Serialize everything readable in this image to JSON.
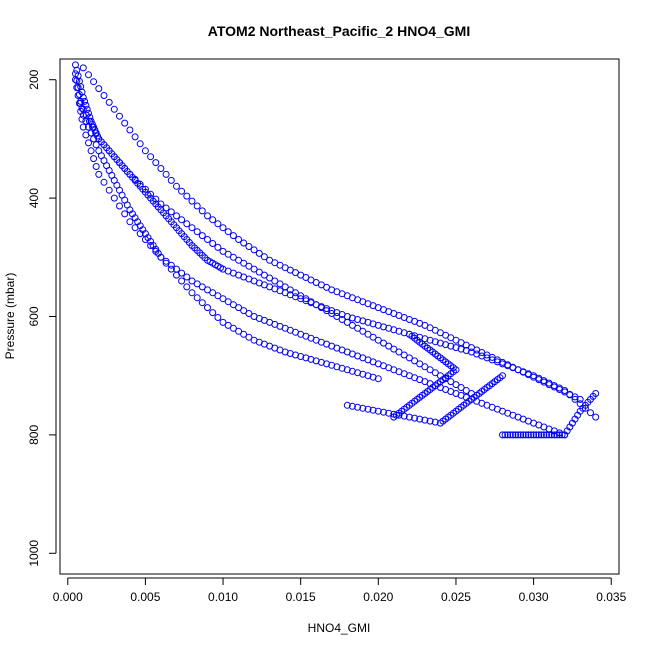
{
  "chart_data": {
    "type": "scatter",
    "title": "ATOM2 Northeast_Pacific_2 HNO4_GMI",
    "xlabel": "HNO4_GMI",
    "ylabel": "Pressure (mbar)",
    "xlim": [
      -0.0005,
      0.0355
    ],
    "ylim": [
      1035,
      165
    ],
    "y_reversed": true,
    "grid": false,
    "legend": "none",
    "marker": "open-circle",
    "color": "#0000ff",
    "x_ticks": [
      "0.000",
      "0.005",
      "0.010",
      "0.015",
      "0.020",
      "0.025",
      "0.030",
      "0.035"
    ],
    "x_tick_values": [
      0.0,
      0.005,
      0.01,
      0.015,
      0.02,
      0.025,
      0.03,
      0.035
    ],
    "y_ticks": [
      "200",
      "400",
      "600",
      "800",
      "1000"
    ],
    "y_tick_values": [
      200,
      400,
      600,
      800,
      1000
    ],
    "series": [
      {
        "x": [
          0.0005,
          0.001,
          0.0015,
          0.002,
          0.003,
          0.004,
          0.005,
          0.006,
          0.007,
          0.008,
          0.009,
          0.01,
          0.012,
          0.014,
          0.016,
          0.018,
          0.02,
          0.022,
          0.024,
          0.026,
          0.028,
          0.03,
          0.032,
          0.034
        ],
        "y": [
          175,
          230,
          270,
          300,
          330,
          360,
          390,
          420,
          450,
          480,
          505,
          520,
          540,
          560,
          580,
          600,
          615,
          630,
          645,
          660,
          680,
          700,
          725,
          770
        ]
      },
      {
        "x": [
          0.0005,
          0.001,
          0.002,
          0.003,
          0.004,
          0.005,
          0.006,
          0.008,
          0.01,
          0.012,
          0.014,
          0.016,
          0.018,
          0.02,
          0.022,
          0.024,
          0.026,
          0.028,
          0.03,
          0.032
        ],
        "y": [
          190,
          260,
          320,
          370,
          420,
          460,
          500,
          540,
          570,
          600,
          620,
          640,
          660,
          680,
          700,
          720,
          740,
          760,
          780,
          800
        ]
      },
      {
        "x": [
          0.0008,
          0.002,
          0.004,
          0.006,
          0.008,
          0.01,
          0.012,
          0.014,
          0.016,
          0.018,
          0.02,
          0.022,
          0.024,
          0.026
        ],
        "y": [
          240,
          300,
          360,
          410,
          450,
          490,
          520,
          550,
          580,
          610,
          640,
          670,
          700,
          730
        ]
      },
      {
        "x": [
          0.001,
          0.003,
          0.005,
          0.007,
          0.009,
          0.011,
          0.013,
          0.015,
          0.017,
          0.019,
          0.021,
          0.023,
          0.025,
          0.027,
          0.029,
          0.031,
          0.033
        ],
        "y": [
          180,
          250,
          320,
          380,
          430,
          470,
          505,
          530,
          555,
          575,
          595,
          615,
          640,
          665,
          690,
          715,
          740
        ]
      },
      {
        "x": [
          0.0005,
          0.001,
          0.002,
          0.004,
          0.006,
          0.008,
          0.01,
          0.012,
          0.014,
          0.016,
          0.018,
          0.02
        ],
        "y": [
          200,
          280,
          360,
          440,
          500,
          560,
          610,
          640,
          660,
          675,
          690,
          705
        ]
      },
      {
        "x": [
          0.018,
          0.02,
          0.022,
          0.024,
          0.025,
          0.026,
          0.027,
          0.028
        ],
        "y": [
          750,
          760,
          770,
          780,
          760,
          740,
          720,
          700
        ]
      },
      {
        "x": [
          0.021,
          0.022,
          0.023,
          0.024,
          0.025,
          0.024,
          0.023,
          0.022
        ],
        "y": [
          770,
          750,
          730,
          710,
          690,
          670,
          650,
          630
        ]
      },
      {
        "x": [
          0.028,
          0.029,
          0.03,
          0.031,
          0.032,
          0.033,
          0.034
        ],
        "y": [
          800,
          800,
          800,
          800,
          800,
          760,
          730
        ]
      }
    ]
  }
}
